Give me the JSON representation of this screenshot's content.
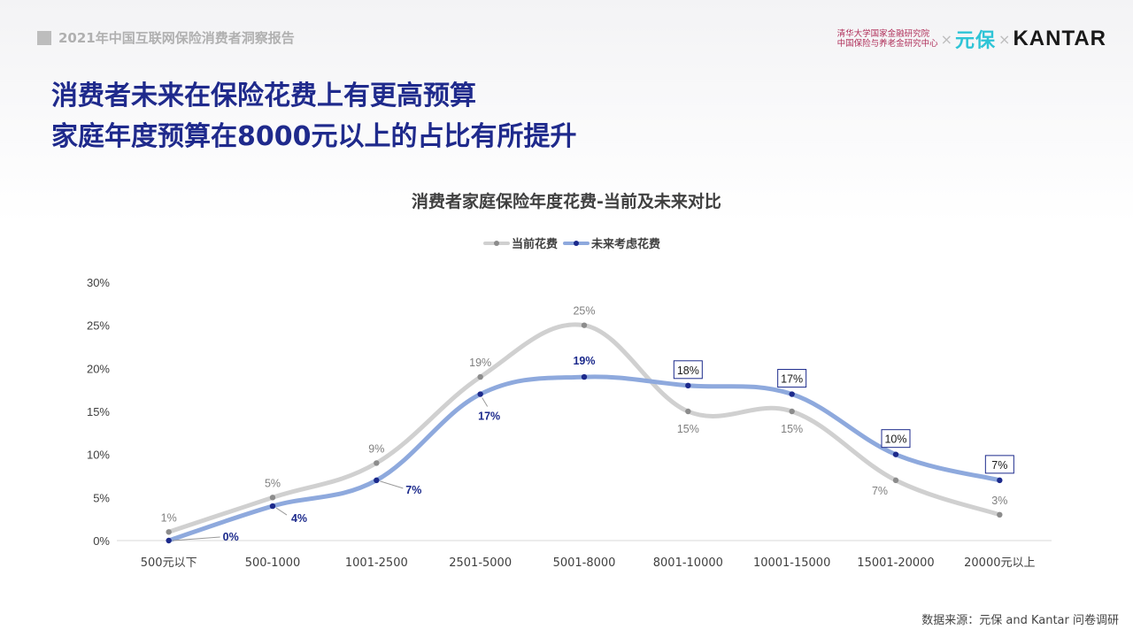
{
  "header": {
    "report_title": "2021年中国互联网保险消费者洞察报告"
  },
  "logos": {
    "institute_line1": "清华大学国家金融研究院",
    "institute_line2": "中国保险与养老金研究中心",
    "times": "×",
    "yuanbao": "元保",
    "kantar": "KANTAR"
  },
  "headline": {
    "line1": "消费者未来在保险花费上有更高预算",
    "line2": "家庭年度预算在8000元以上的占比有所提升"
  },
  "chart_data": {
    "type": "line",
    "title": "消费者家庭保险年度花费-当前及未来对比",
    "categories": [
      "500元以下",
      "500-1000",
      "1001-2500",
      "2501-5000",
      "5001-8000",
      "8001-10000",
      "10001-15000",
      "15001-20000",
      "20000元以上"
    ],
    "series": [
      {
        "name": "当前花费",
        "color": "#d0d0d0",
        "marker": "#8c8c8c",
        "label_color": "#808080",
        "values": [
          1,
          5,
          9,
          19,
          25,
          15,
          15,
          7,
          3
        ]
      },
      {
        "name": "未来考虑花费",
        "color": "#8ea9dd",
        "marker": "#1c2a8c",
        "label_color": "#1c2a8c",
        "values": [
          0,
          4,
          7,
          17,
          19,
          18,
          17,
          10,
          7
        ]
      }
    ],
    "yticks": [
      "0%",
      "5%",
      "10%",
      "15%",
      "20%",
      "25%",
      "30%"
    ],
    "ylim": [
      0,
      30
    ],
    "legend_position": "top-center",
    "smooth": true
  },
  "footer": {
    "source": "数据来源：元保 and Kantar 问卷调研"
  }
}
